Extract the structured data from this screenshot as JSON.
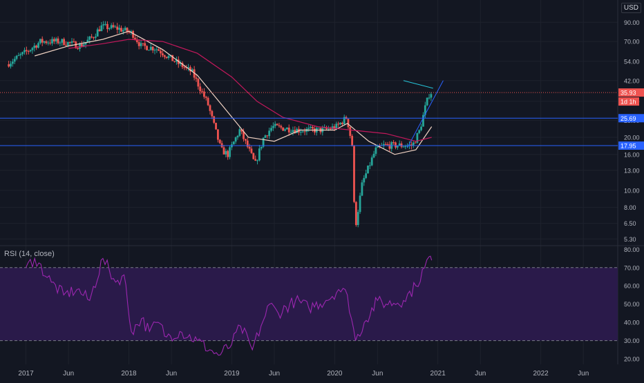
{
  "currency_label": "USD",
  "colors": {
    "background": "#131722",
    "grid": "#1e222d",
    "candle_up": "#26a69a",
    "candle_down": "#ef5350",
    "ma_fast": "#f2d4c4",
    "ma_slow": "#c2185b",
    "hline": "#2962ff",
    "trendline": "#2962ff",
    "trendline_teal": "#26c6da",
    "rsi_line": "#9c27b0",
    "rsi_band": "#2a1a4a",
    "price_tag": "#ef5350",
    "level_tag": "#2962ff",
    "axis_text": "#b2b5be"
  },
  "chart_data": [
    {
      "type": "candlestick",
      "title": "",
      "scale": "log",
      "ylim": [
        4.9,
        110
      ],
      "y_ticks": [
        "90.00",
        "70.00",
        "54.00",
        "42.00",
        "32.00",
        "25.00",
        "20.00",
        "16.00",
        "13.00",
        "10.00",
        "8.00",
        "6.50",
        "5.30"
      ],
      "x_ticks": [
        "2017",
        "Jun",
        "2018",
        "Jun",
        "2019",
        "Jun",
        "2020",
        "Jun",
        "2021",
        "Jun",
        "2022",
        "Jun"
      ],
      "horizontal_levels": [
        {
          "label": "25.69",
          "value": 25.69
        },
        {
          "label": "17.95",
          "value": 17.95
        }
      ],
      "last_price": {
        "label": "35.93",
        "value": 35.93,
        "timeframe": "1d 1h"
      },
      "keypoints": [
        {
          "x": "2016-11-01",
          "y": 52
        },
        {
          "x": "2017-01-15",
          "y": 62
        },
        {
          "x": "2017-03-01",
          "y": 70
        },
        {
          "x": "2017-05-15",
          "y": 70
        },
        {
          "x": "2017-07-20",
          "y": 66
        },
        {
          "x": "2017-09-01",
          "y": 74
        },
        {
          "x": "2017-10-01",
          "y": 85
        },
        {
          "x": "2017-12-01",
          "y": 83
        },
        {
          "x": "2018-01-20",
          "y": 78
        },
        {
          "x": "2018-02-20",
          "y": 66
        },
        {
          "x": "2018-04-15",
          "y": 64
        },
        {
          "x": "2018-06-20",
          "y": 54
        },
        {
          "x": "2018-08-20",
          "y": 47
        },
        {
          "x": "2018-10-15",
          "y": 31
        },
        {
          "x": "2018-12-01",
          "y": 17
        },
        {
          "x": "2018-12-25",
          "y": 16
        },
        {
          "x": "2019-02-05",
          "y": 22
        },
        {
          "x": "2019-03-10",
          "y": 17
        },
        {
          "x": "2019-04-01",
          "y": 14
        },
        {
          "x": "2019-05-01",
          "y": 20
        },
        {
          "x": "2019-06-01",
          "y": 23
        },
        {
          "x": "2019-09-01",
          "y": 22
        },
        {
          "x": "2019-12-01",
          "y": 22
        },
        {
          "x": "2020-01-15",
          "y": 23
        },
        {
          "x": "2020-02-20",
          "y": 26
        },
        {
          "x": "2020-03-10",
          "y": 18
        },
        {
          "x": "2020-03-20",
          "y": 6
        },
        {
          "x": "2020-04-15",
          "y": 11
        },
        {
          "x": "2020-06-01",
          "y": 17
        },
        {
          "x": "2020-07-01",
          "y": 18
        },
        {
          "x": "2020-09-01",
          "y": 18
        },
        {
          "x": "2020-10-10",
          "y": 18
        },
        {
          "x": "2020-11-05",
          "y": 22
        },
        {
          "x": "2020-11-25",
          "y": 30
        },
        {
          "x": "2020-12-10",
          "y": 35.93
        }
      ],
      "moving_averages": [
        {
          "keypoints": [
            {
              "x": "2017-02-01",
              "y": 58
            },
            {
              "x": "2017-06-01",
              "y": 66
            },
            {
              "x": "2017-10-01",
              "y": 72
            },
            {
              "x": "2018-01-01",
              "y": 80
            },
            {
              "x": "2018-05-01",
              "y": 63
            },
            {
              "x": "2018-09-01",
              "y": 45
            },
            {
              "x": "2018-12-01",
              "y": 30
            },
            {
              "x": "2019-03-01",
              "y": 20
            },
            {
              "x": "2019-06-01",
              "y": 19
            },
            {
              "x": "2019-09-01",
              "y": 22
            },
            {
              "x": "2020-01-01",
              "y": 22
            },
            {
              "x": "2020-02-15",
              "y": 24
            },
            {
              "x": "2020-05-01",
              "y": 19
            },
            {
              "x": "2020-08-01",
              "y": 16
            },
            {
              "x": "2020-10-15",
              "y": 17
            },
            {
              "x": "2020-12-10",
              "y": 23
            }
          ]
        },
        {
          "keypoints": [
            {
              "x": "2017-06-01",
              "y": 64
            },
            {
              "x": "2017-10-01",
              "y": 68
            },
            {
              "x": "2018-01-01",
              "y": 72
            },
            {
              "x": "2018-05-01",
              "y": 70
            },
            {
              "x": "2018-09-01",
              "y": 60
            },
            {
              "x": "2019-01-01",
              "y": 44
            },
            {
              "x": "2019-04-01",
              "y": 32
            },
            {
              "x": "2019-07-01",
              "y": 26
            },
            {
              "x": "2019-11-01",
              "y": 23
            },
            {
              "x": "2020-03-01",
              "y": 22
            },
            {
              "x": "2020-07-01",
              "y": 21
            },
            {
              "x": "2020-10-15",
              "y": 19
            },
            {
              "x": "2020-12-10",
              "y": 20
            }
          ]
        }
      ],
      "trendlines": [
        {
          "from": {
            "x": "2020-09-15",
            "y": 17.5
          },
          "to": {
            "x": "2021-01-20",
            "y": 42
          }
        },
        {
          "from": {
            "x": "2020-09-01",
            "y": 42
          },
          "to": {
            "x": "2020-12-15",
            "y": 38
          }
        }
      ]
    },
    {
      "type": "line",
      "title": "RSI (14, close)",
      "ylim": [
        17,
        82
      ],
      "y_ticks": [
        "80.00",
        "70.00",
        "60.00",
        "50.00",
        "40.00",
        "30.00",
        "20.00"
      ],
      "band": [
        30,
        70
      ],
      "levels": [
        70,
        30
      ],
      "keypoints": [
        {
          "x": "2017-01-01",
          "y": 70
        },
        {
          "x": "2017-02-01",
          "y": 75
        },
        {
          "x": "2017-04-01",
          "y": 62
        },
        {
          "x": "2017-05-15",
          "y": 55
        },
        {
          "x": "2017-07-01",
          "y": 58
        },
        {
          "x": "2017-08-15",
          "y": 52
        },
        {
          "x": "2017-10-01",
          "y": 75
        },
        {
          "x": "2017-11-15",
          "y": 62
        },
        {
          "x": "2017-12-15",
          "y": 66
        },
        {
          "x": "2018-01-10",
          "y": 35
        },
        {
          "x": "2018-02-15",
          "y": 42
        },
        {
          "x": "2018-03-15",
          "y": 35
        },
        {
          "x": "2018-04-15",
          "y": 40
        },
        {
          "x": "2018-05-15",
          "y": 32
        },
        {
          "x": "2018-07-01",
          "y": 35
        },
        {
          "x": "2018-09-01",
          "y": 30
        },
        {
          "x": "2018-10-15",
          "y": 25
        },
        {
          "x": "2018-11-15",
          "y": 22
        },
        {
          "x": "2019-01-01",
          "y": 28
        },
        {
          "x": "2019-02-01",
          "y": 38
        },
        {
          "x": "2019-03-15",
          "y": 25
        },
        {
          "x": "2019-04-15",
          "y": 38
        },
        {
          "x": "2019-05-15",
          "y": 50
        },
        {
          "x": "2019-06-15",
          "y": 45
        },
        {
          "x": "2019-08-15",
          "y": 52
        },
        {
          "x": "2019-10-01",
          "y": 48
        },
        {
          "x": "2019-12-01",
          "y": 52
        },
        {
          "x": "2020-01-15",
          "y": 58
        },
        {
          "x": "2020-02-15",
          "y": 55
        },
        {
          "x": "2020-03-15",
          "y": 30
        },
        {
          "x": "2020-04-15",
          "y": 40
        },
        {
          "x": "2020-06-01",
          "y": 52
        },
        {
          "x": "2020-07-01",
          "y": 50
        },
        {
          "x": "2020-09-01",
          "y": 52
        },
        {
          "x": "2020-10-15",
          "y": 60
        },
        {
          "x": "2020-11-15",
          "y": 70
        },
        {
          "x": "2020-12-01",
          "y": 76
        },
        {
          "x": "2020-12-10",
          "y": 74
        }
      ]
    }
  ]
}
